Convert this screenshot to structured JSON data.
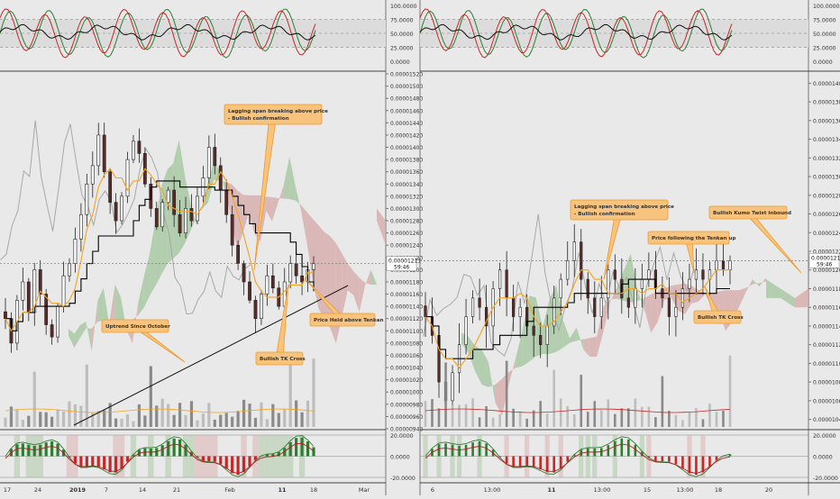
{
  "left_chart": {
    "osc_top_ticks": [
      "100.0000",
      "75.0000",
      "50.0000",
      "25.0000",
      "0.0000"
    ],
    "price_ticks": [
      "0.00001520",
      "0.00001500",
      "0.00001480",
      "0.00001460",
      "0.00001440",
      "0.00001420",
      "0.00001400",
      "0.00001380",
      "0.00001360",
      "0.00001340",
      "0.00001320",
      "0.00001300",
      "0.00001280",
      "0.00001260",
      "0.00001240",
      "0.00001220",
      "0.00001200",
      "0.00001180",
      "0.00001160",
      "0.00001140",
      "0.00001120",
      "0.00001100",
      "0.00001080",
      "0.00001060",
      "0.00001040",
      "0.00001020",
      "0.00001000",
      "0.00000980",
      "0.00000960",
      "0.00000940"
    ],
    "price_marker": "0.00001211",
    "price_marker_time": "59:46",
    "osc_bottom_ticks": [
      "20.0000",
      "0.0000",
      "-20.0000"
    ],
    "x_ticks": [
      "17",
      "24",
      "2019",
      "7",
      "14",
      "21",
      "Feb",
      "11",
      "18",
      "Mar"
    ],
    "annotations": [
      {
        "text": "Lagging span breaking above price - Bullish confirmation"
      },
      {
        "text": "Uptrend Since October"
      },
      {
        "text": "Bullish TK Cross"
      },
      {
        "text": "Price Held above Tenkan"
      }
    ]
  },
  "right_chart": {
    "osc_top_ticks": [
      "100.0000",
      "75.0000",
      "50.0000",
      "25.0000",
      "0.0000"
    ],
    "price_ticks": [
      "0.00001400",
      "0.00001380",
      "0.00001360",
      "0.00001340",
      "0.00001320",
      "0.00001300",
      "0.00001280",
      "0.00001260",
      "0.00001240",
      "0.00001220",
      "0.00001200",
      "0.00001180",
      "0.00001160",
      "0.00001140",
      "0.00001120",
      "0.00001100",
      "0.00001080",
      "0.00001060",
      "0.00001040"
    ],
    "price_marker": "0.00001211",
    "price_marker_time": "59:46",
    "osc_bottom_ticks": [
      "20.0000",
      "0.0000",
      "-20.0000"
    ],
    "x_ticks": [
      "6",
      "13:00",
      "11",
      "13:00",
      "15",
      "13:00",
      "18",
      "20"
    ],
    "annotations": [
      {
        "text": "Lagging span breaking above price - Bullish confirmation"
      },
      {
        "text": "Price following the Tenkan up"
      },
      {
        "text": "Bullish Kumo Twist inbound"
      },
      {
        "text": "Bullish TK Cross"
      }
    ]
  },
  "colors": {
    "background": "#e9e9e9",
    "bull_cloud": "#9fc49a",
    "bear_cloud": "#d6a7a7",
    "tenkan": "#f7a21b",
    "kijun": "#000000",
    "lagging": "#a8a8a8",
    "annotation_fill": "#f7c37d",
    "annotation_border": "#ee9a2a",
    "hist_up": "#2e7d32",
    "hist_down": "#c62828"
  },
  "chart_data": [
    {
      "type": "line",
      "name_hint": "left-daily-ichimoku",
      "x_ticks": [
        "17",
        "24",
        "2019",
        "7",
        "14",
        "21",
        "Feb",
        "11",
        "18",
        "Mar"
      ],
      "ylim": [
        9.4e-06,
        1.52e-05
      ],
      "close": [
        1.12e-05,
        1.08e-05,
        1.15e-05,
        1.18e-05,
        1.13e-05,
        1.2e-05,
        1.16e-05,
        1.11e-05,
        1.09e-05,
        1.14e-05,
        1.19e-05,
        1.21e-05,
        1.25e-05,
        1.29e-05,
        1.34e-05,
        1.37e-05,
        1.42e-05,
        1.36e-05,
        1.31e-05,
        1.28e-05,
        1.32e-05,
        1.38e-05,
        1.41e-05,
        1.39e-05,
        1.34e-05,
        1.3e-05,
        1.27e-05,
        1.31e-05,
        1.33e-05,
        1.29e-05,
        1.26e-05,
        1.3e-05,
        1.28e-05,
        1.32e-05,
        1.35e-05,
        1.4e-05,
        1.37e-05,
        1.33e-05,
        1.29e-05,
        1.24e-05,
        1.21e-05,
        1.18e-05,
        1.15e-05,
        1.12e-05,
        1.16e-05,
        1.19e-05,
        1.17e-05,
        1.14e-05,
        1.18e-05,
        1.21e-05,
        1.19e-05,
        1.18e-05,
        1.2e-05,
        1.21e-05
      ],
      "annotations": [
        "Lagging span breaking above price - Bullish confirmation",
        "Uptrend Since October",
        "Bullish TK Cross",
        "Price Held above Tenkan"
      ]
    },
    {
      "type": "line",
      "name_hint": "right-hourly-ichimoku",
      "x_ticks": [
        "6",
        "13:00",
        "11",
        "13:00",
        "15",
        "13:00",
        "18",
        "20"
      ],
      "ylim": [
        1.03e-05,
        1.41e-05
      ],
      "close": [
        1.15e-05,
        1.13e-05,
        1.08e-05,
        1.06e-05,
        1.09e-05,
        1.12e-05,
        1.15e-05,
        1.17e-05,
        1.16e-05,
        1.14e-05,
        1.18e-05,
        1.2e-05,
        1.17e-05,
        1.15e-05,
        1.16e-05,
        1.14e-05,
        1.13e-05,
        1.12e-05,
        1.14e-05,
        1.17e-05,
        1.19e-05,
        1.21e-05,
        1.23e-05,
        1.19e-05,
        1.17e-05,
        1.15e-05,
        1.17e-05,
        1.2e-05,
        1.19e-05,
        1.17e-05,
        1.16e-05,
        1.18e-05,
        1.19e-05,
        1.2e-05,
        1.18e-05,
        1.17e-05,
        1.15e-05,
        1.16e-05,
        1.18e-05,
        1.19e-05,
        1.2e-05,
        1.19e-05,
        1.2e-05,
        1.21e-05,
        1.2e-05,
        1.21e-05
      ],
      "annotations": [
        "Lagging span breaking above price - Bullish confirmation",
        "Price following the Tenkan up",
        "Bullish Kumo Twist inbound",
        "Bullish TK Cross"
      ]
    }
  ]
}
